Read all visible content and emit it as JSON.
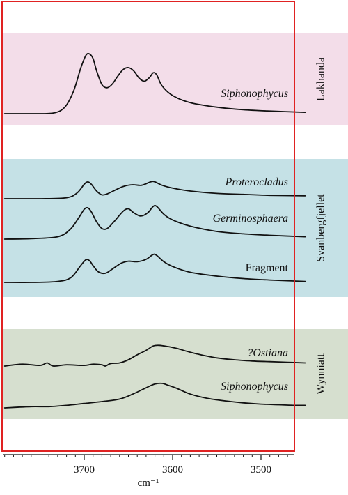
{
  "chart_data": {
    "type": "line",
    "xlabel": "cm⁻¹",
    "x_axis": {
      "reversed": true,
      "xlim": [
        3790,
        3450
      ],
      "ticks": [
        3700,
        3600,
        3500
      ],
      "tick_labels": [
        "3700",
        "3600",
        "3500"
      ]
    },
    "groups": [
      {
        "name": "Lakhanda",
        "color": "#f3dde9"
      },
      {
        "name": "Svanbergfjellet",
        "color": "#c5e1e6"
      },
      {
        "name": "Wynniatt",
        "color": "#d6dfcf"
      }
    ],
    "series": [
      {
        "name": "Siphonophycus",
        "italic": true,
        "group": "Lakhanda",
        "x": [
          3790,
          3760,
          3735,
          3722,
          3712,
          3704,
          3698,
          3694,
          3690,
          3686,
          3680,
          3674,
          3668,
          3662,
          3656,
          3650,
          3644,
          3638,
          3632,
          3626,
          3622,
          3618,
          3612,
          3600,
          3580,
          3550,
          3520,
          3490,
          3450
        ],
        "y": [
          0.0,
          0.0,
          0.01,
          0.1,
          0.35,
          0.7,
          0.9,
          0.92,
          0.85,
          0.66,
          0.45,
          0.4,
          0.46,
          0.58,
          0.68,
          0.71,
          0.66,
          0.55,
          0.5,
          0.56,
          0.63,
          0.6,
          0.43,
          0.28,
          0.17,
          0.1,
          0.06,
          0.04,
          0.02
        ]
      },
      {
        "name": "Proterocladus",
        "italic": true,
        "group": "Svanbergfjellet",
        "x": [
          3790,
          3750,
          3720,
          3708,
          3700,
          3696,
          3692,
          3686,
          3680,
          3674,
          3666,
          3655,
          3645,
          3635,
          3625,
          3620,
          3612,
          3600,
          3580,
          3550,
          3520,
          3490,
          3450
        ],
        "y": [
          0.0,
          0.0,
          0.02,
          0.12,
          0.3,
          0.35,
          0.3,
          0.16,
          0.08,
          0.1,
          0.17,
          0.26,
          0.29,
          0.28,
          0.35,
          0.35,
          0.28,
          0.22,
          0.16,
          0.11,
          0.09,
          0.07,
          0.06
        ]
      },
      {
        "name": "Germinosphaera",
        "italic": true,
        "group": "Svanbergfjellet",
        "x": [
          3790,
          3760,
          3730,
          3716,
          3706,
          3700,
          3696,
          3692,
          3686,
          3680,
          3674,
          3666,
          3656,
          3650,
          3644,
          3636,
          3628,
          3622,
          3618,
          3610,
          3600,
          3580,
          3550,
          3520,
          3490,
          3450
        ],
        "y": [
          0.0,
          0.01,
          0.05,
          0.2,
          0.45,
          0.62,
          0.65,
          0.57,
          0.36,
          0.22,
          0.22,
          0.37,
          0.58,
          0.63,
          0.55,
          0.48,
          0.55,
          0.68,
          0.68,
          0.52,
          0.4,
          0.27,
          0.16,
          0.11,
          0.08,
          0.05
        ]
      },
      {
        "name": "Fragment",
        "italic": false,
        "group": "Svanbergfjellet",
        "x": [
          3790,
          3760,
          3730,
          3715,
          3704,
          3698,
          3694,
          3690,
          3684,
          3676,
          3668,
          3658,
          3650,
          3640,
          3630,
          3622,
          3618,
          3610,
          3600,
          3580,
          3550,
          3520,
          3490,
          3450
        ],
        "y": [
          0.0,
          0.0,
          0.02,
          0.1,
          0.35,
          0.47,
          0.45,
          0.35,
          0.22,
          0.19,
          0.28,
          0.4,
          0.44,
          0.43,
          0.48,
          0.58,
          0.56,
          0.43,
          0.33,
          0.21,
          0.13,
          0.08,
          0.05,
          0.02
        ]
      },
      {
        "name": "?Ostiana",
        "italic": true,
        "group": "Wynniatt",
        "x": [
          3790,
          3770,
          3750,
          3742,
          3735,
          3720,
          3700,
          3690,
          3680,
          3676,
          3670,
          3660,
          3650,
          3640,
          3630,
          3622,
          3615,
          3605,
          3595,
          3580,
          3565,
          3550,
          3530,
          3510,
          3490,
          3470,
          3450
        ],
        "y": [
          0.0,
          0.03,
          0.01,
          0.05,
          0.0,
          0.02,
          0.01,
          0.03,
          0.02,
          0.0,
          0.04,
          0.05,
          0.1,
          0.18,
          0.25,
          0.32,
          0.33,
          0.31,
          0.28,
          0.22,
          0.17,
          0.13,
          0.1,
          0.08,
          0.07,
          0.06,
          0.05
        ]
      },
      {
        "name": "Siphonophycus",
        "italic": true,
        "group": "Wynniatt",
        "x": [
          3790,
          3760,
          3740,
          3720,
          3700,
          3680,
          3660,
          3645,
          3630,
          3620,
          3612,
          3605,
          3595,
          3580,
          3560,
          3540,
          3520,
          3500,
          3480,
          3460,
          3450
        ],
        "y": [
          0.0,
          0.02,
          0.02,
          0.04,
          0.07,
          0.1,
          0.14,
          0.22,
          0.32,
          0.38,
          0.39,
          0.36,
          0.31,
          0.22,
          0.15,
          0.11,
          0.08,
          0.06,
          0.05,
          0.04,
          0.04
        ]
      }
    ]
  }
}
